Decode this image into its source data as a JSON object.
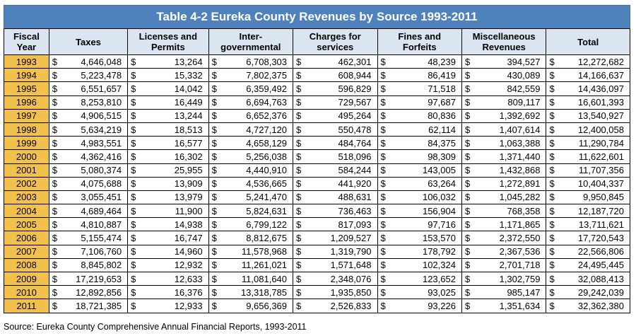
{
  "title": "Table 4-2 Eureka County Revenues by Source 1993-2011",
  "headers": [
    [
      "Fiscal",
      "Year"
    ],
    [
      "Taxes"
    ],
    [
      "Licenses and",
      "Permits"
    ],
    [
      "Inter-",
      "governmental"
    ],
    [
      "Charges for",
      "services"
    ],
    [
      "Fines and",
      "Forfeits"
    ],
    [
      "Miscellaneous",
      "Revenues"
    ],
    [
      "Total"
    ]
  ],
  "currency": "$",
  "rows": [
    [
      "1993",
      "4,646,048",
      "13,264",
      "6,708,303",
      "462,301",
      "48,239",
      "394,527",
      "12,272,682"
    ],
    [
      "1994",
      "5,223,478",
      "15,332",
      "7,802,375",
      "608,944",
      "86,419",
      "430,089",
      "14,166,637"
    ],
    [
      "1995",
      "6,551,657",
      "14,042",
      "6,359,492",
      "596,829",
      "71,518",
      "842,559",
      "14,436,097"
    ],
    [
      "1996",
      "8,253,810",
      "16,449",
      "6,694,763",
      "729,567",
      "97,687",
      "809,117",
      "16,601,393"
    ],
    [
      "1997",
      "4,906,515",
      "13,244",
      "6,652,376",
      "495,264",
      "80,836",
      "1,392,692",
      "13,540,927"
    ],
    [
      "1998",
      "5,634,219",
      "18,513",
      "4,727,120",
      "550,478",
      "62,114",
      "1,407,614",
      "12,400,058"
    ],
    [
      "1999",
      "4,983,551",
      "16,577",
      "4,658,129",
      "484,764",
      "84,375",
      "1,063,388",
      "11,290,784"
    ],
    [
      "2000",
      "4,362,416",
      "16,302",
      "5,256,038",
      "518,096",
      "98,309",
      "1,371,440",
      "11,622,601"
    ],
    [
      "2001",
      "5,080,374",
      "25,955",
      "4,440,910",
      "584,244",
      "143,005",
      "1,432,868",
      "11,707,356"
    ],
    [
      "2002",
      "4,075,688",
      "13,909",
      "4,536,665",
      "441,920",
      "63,264",
      "1,272,891",
      "10,404,337"
    ],
    [
      "2003",
      "3,055,451",
      "13,979",
      "5,241,470",
      "488,631",
      "106,032",
      "1,045,282",
      "9,950,845"
    ],
    [
      "2004",
      "4,689,464",
      "11,900",
      "5,824,631",
      "736,463",
      "156,904",
      "768,358",
      "12,187,720"
    ],
    [
      "2005",
      "4,810,887",
      "14,938",
      "6,799,122",
      "817,093",
      "97,716",
      "1,171,865",
      "13,711,621"
    ],
    [
      "2006",
      "5,155,474",
      "16,747",
      "8,812,675",
      "1,209,527",
      "153,570",
      "2,372,550",
      "17,720,543"
    ],
    [
      "2007",
      "7,106,760",
      "14,960",
      "11,578,968",
      "1,319,790",
      "178,792",
      "2,367,536",
      "22,566,806"
    ],
    [
      "2008",
      "8,845,802",
      "12,932",
      "11,261,021",
      "1,571,648",
      "102,324",
      "2,701,718",
      "24,495,445"
    ],
    [
      "2009",
      "17,219,653",
      "12,633",
      "11,081,640",
      "2,348,076",
      "123,652",
      "1,302,759",
      "32,088,413"
    ],
    [
      "2010",
      "12,892,856",
      "16,376",
      "13,318,785",
      "1,935,850",
      "93,025",
      "985,147",
      "29,242,039"
    ],
    [
      "2011",
      "18,721,385",
      "12,933",
      "9,656,369",
      "2,526,833",
      "93,226",
      "1,351,634",
      "32,362,380"
    ]
  ],
  "source": "Source: Eureka County Comprehensive Annual Financial Reports, 1993-2011"
}
